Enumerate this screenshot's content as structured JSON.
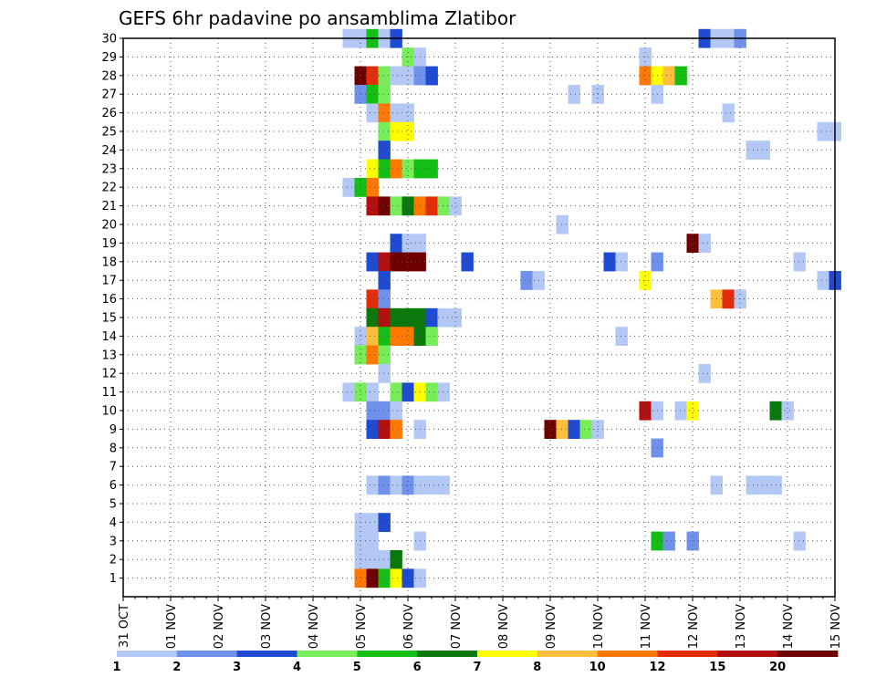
{
  "chart_data": {
    "type": "heatmap",
    "title": "GEFS 6hr padavine po ansamblima Zlatibor",
    "xlabel": "",
    "ylabel": "",
    "x_tick_labels": [
      "31 OCT",
      "01 NOV",
      "02 NOV",
      "03 NOV",
      "04 NOV",
      "05 NOV",
      "06 NOV",
      "07 NOV",
      "08 NOV",
      "09 NOV",
      "10 NOV",
      "11 NOV",
      "12 NOV",
      "13 NOV",
      "14 NOV",
      "15 NOV"
    ],
    "x_range": [
      0,
      15
    ],
    "y_range": [
      0,
      30
    ],
    "y_tick_labels": [
      "1",
      "2",
      "3",
      "4",
      "5",
      "6",
      "7",
      "8",
      "9",
      "10",
      "11",
      "12",
      "13",
      "14",
      "15",
      "16",
      "17",
      "18",
      "19",
      "20",
      "21",
      "22",
      "23",
      "24",
      "25",
      "26",
      "27",
      "28",
      "29",
      "30"
    ],
    "grid": true,
    "colorbar": {
      "placement": "bottom",
      "colors": [
        "#b4c8f5",
        "#6e91eb",
        "#1e4bd2",
        "#78ed5a",
        "#14be14",
        "#0a780a",
        "#ffff00",
        "#ffbe3c",
        "#ff7800",
        "#e12d0a",
        "#b40f0f",
        "#6e0000"
      ],
      "tick_labels": [
        "1",
        "2",
        "3",
        "4",
        "5",
        "6",
        "7",
        "8",
        "10",
        "12",
        "15",
        "20"
      ]
    },
    "cells": [
      [
        4.75,
        30,
        0
      ],
      [
        5.0,
        30,
        0
      ],
      [
        5.25,
        30,
        4
      ],
      [
        5.5,
        30,
        0
      ],
      [
        5.75,
        30,
        2
      ],
      [
        12.25,
        30,
        2
      ],
      [
        12.5,
        30,
        0
      ],
      [
        12.75,
        30,
        0
      ],
      [
        13.0,
        30,
        1
      ],
      [
        6.0,
        29,
        3
      ],
      [
        6.25,
        29,
        0
      ],
      [
        11.0,
        29,
        0
      ],
      [
        5.0,
        28,
        11
      ],
      [
        5.25,
        28,
        9
      ],
      [
        5.5,
        28,
        3
      ],
      [
        5.75,
        28,
        0
      ],
      [
        6.0,
        28,
        0
      ],
      [
        6.25,
        28,
        1
      ],
      [
        6.5,
        28,
        2
      ],
      [
        11.0,
        28,
        8
      ],
      [
        11.25,
        28,
        6
      ],
      [
        11.5,
        28,
        7
      ],
      [
        11.75,
        28,
        4
      ],
      [
        5.0,
        27,
        1
      ],
      [
        5.25,
        27,
        4
      ],
      [
        5.5,
        27,
        3
      ],
      [
        9.5,
        27,
        0
      ],
      [
        10.0,
        27,
        0
      ],
      [
        11.25,
        27,
        0
      ],
      [
        5.25,
        26,
        0
      ],
      [
        5.5,
        26,
        8
      ],
      [
        5.75,
        26,
        0
      ],
      [
        6.0,
        26,
        0
      ],
      [
        12.75,
        26,
        0
      ],
      [
        5.5,
        25,
        3
      ],
      [
        5.75,
        25,
        6
      ],
      [
        6.0,
        25,
        6
      ],
      [
        14.75,
        25,
        0
      ],
      [
        15.0,
        25,
        0
      ],
      [
        5.5,
        24,
        2
      ],
      [
        13.25,
        24,
        0
      ],
      [
        13.5,
        24,
        0
      ],
      [
        5.25,
        23,
        6
      ],
      [
        5.5,
        23,
        4
      ],
      [
        5.75,
        23,
        8
      ],
      [
        6.0,
        23,
        3
      ],
      [
        6.25,
        23,
        4
      ],
      [
        6.5,
        23,
        4
      ],
      [
        4.75,
        22,
        0
      ],
      [
        5.0,
        22,
        4
      ],
      [
        5.25,
        22,
        8
      ],
      [
        5.25,
        21,
        10
      ],
      [
        5.5,
        21,
        11
      ],
      [
        5.75,
        21,
        3
      ],
      [
        6.0,
        21,
        5
      ],
      [
        6.25,
        21,
        8
      ],
      [
        6.5,
        21,
        9
      ],
      [
        6.75,
        21,
        3
      ],
      [
        7.0,
        21,
        0
      ],
      [
        9.25,
        20,
        0
      ],
      [
        5.75,
        19,
        2
      ],
      [
        6.0,
        19,
        0
      ],
      [
        6.25,
        19,
        0
      ],
      [
        12.0,
        19,
        11
      ],
      [
        12.25,
        19,
        0
      ],
      [
        5.25,
        18,
        2
      ],
      [
        5.5,
        18,
        10
      ],
      [
        5.75,
        18,
        11
      ],
      [
        6.0,
        18,
        11
      ],
      [
        6.25,
        18,
        11
      ],
      [
        7.25,
        18,
        2
      ],
      [
        10.25,
        18,
        2
      ],
      [
        10.5,
        18,
        0
      ],
      [
        11.25,
        18,
        1
      ],
      [
        14.25,
        18,
        0
      ],
      [
        5.5,
        17,
        2
      ],
      [
        8.5,
        17,
        1
      ],
      [
        8.75,
        17,
        0
      ],
      [
        11.0,
        17,
        6
      ],
      [
        14.75,
        17,
        0
      ],
      [
        15.0,
        17,
        2
      ],
      [
        5.25,
        16,
        9
      ],
      [
        5.5,
        16,
        1
      ],
      [
        12.5,
        16,
        7
      ],
      [
        12.75,
        16,
        9
      ],
      [
        13.0,
        16,
        0
      ],
      [
        5.25,
        15,
        5
      ],
      [
        5.5,
        15,
        10
      ],
      [
        5.75,
        15,
        5
      ],
      [
        6.0,
        15,
        5
      ],
      [
        6.25,
        15,
        5
      ],
      [
        6.5,
        15,
        2
      ],
      [
        6.75,
        15,
        0
      ],
      [
        7.0,
        15,
        0
      ],
      [
        5.0,
        14,
        0
      ],
      [
        5.25,
        14,
        7
      ],
      [
        5.5,
        14,
        4
      ],
      [
        5.75,
        14,
        8
      ],
      [
        6.0,
        14,
        8
      ],
      [
        6.25,
        14,
        5
      ],
      [
        6.5,
        14,
        3
      ],
      [
        10.5,
        14,
        0
      ],
      [
        5.0,
        13,
        3
      ],
      [
        5.25,
        13,
        8
      ],
      [
        5.5,
        13,
        3
      ],
      [
        5.5,
        12,
        0
      ],
      [
        12.25,
        12,
        0
      ],
      [
        4.75,
        11,
        0
      ],
      [
        5.0,
        11,
        3
      ],
      [
        5.25,
        11,
        0
      ],
      [
        5.75,
        11,
        3
      ],
      [
        6.0,
        11,
        2
      ],
      [
        6.25,
        11,
        6
      ],
      [
        6.5,
        11,
        3
      ],
      [
        6.75,
        11,
        0
      ],
      [
        5.25,
        10,
        1
      ],
      [
        5.5,
        10,
        1
      ],
      [
        5.75,
        10,
        0
      ],
      [
        11.0,
        10,
        10
      ],
      [
        11.25,
        10,
        0
      ],
      [
        11.75,
        10,
        0
      ],
      [
        12.0,
        10,
        6
      ],
      [
        13.75,
        10,
        5
      ],
      [
        14.0,
        10,
        0
      ],
      [
        5.25,
        9,
        2
      ],
      [
        5.5,
        9,
        10
      ],
      [
        5.75,
        9,
        8
      ],
      [
        6.25,
        9,
        0
      ],
      [
        9.0,
        9,
        11
      ],
      [
        9.25,
        9,
        7
      ],
      [
        9.5,
        9,
        2
      ],
      [
        9.75,
        9,
        3
      ],
      [
        10.0,
        9,
        0
      ],
      [
        11.25,
        8,
        1
      ],
      [
        5.25,
        6,
        0
      ],
      [
        5.5,
        6,
        1
      ],
      [
        5.75,
        6,
        0
      ],
      [
        6.0,
        6,
        1
      ],
      [
        6.25,
        6,
        0
      ],
      [
        6.5,
        6,
        0
      ],
      [
        6.75,
        6,
        0
      ],
      [
        12.5,
        6,
        0
      ],
      [
        13.25,
        6,
        0
      ],
      [
        13.5,
        6,
        0
      ],
      [
        13.75,
        6,
        0
      ],
      [
        5.0,
        4,
        0
      ],
      [
        5.25,
        4,
        0
      ],
      [
        5.5,
        4,
        2
      ],
      [
        5.0,
        3,
        0
      ],
      [
        5.25,
        3,
        0
      ],
      [
        6.25,
        3,
        0
      ],
      [
        11.25,
        3,
        4
      ],
      [
        11.5,
        3,
        1
      ],
      [
        12.0,
        3,
        1
      ],
      [
        14.25,
        3,
        0
      ],
      [
        5.0,
        2,
        0
      ],
      [
        5.25,
        2,
        0
      ],
      [
        5.5,
        2,
        0
      ],
      [
        5.75,
        2,
        5
      ],
      [
        5.0,
        1,
        8
      ],
      [
        5.25,
        1,
        11
      ],
      [
        5.5,
        1,
        4
      ],
      [
        5.75,
        1,
        6
      ],
      [
        6.0,
        1,
        2
      ],
      [
        6.25,
        1,
        0
      ]
    ]
  }
}
